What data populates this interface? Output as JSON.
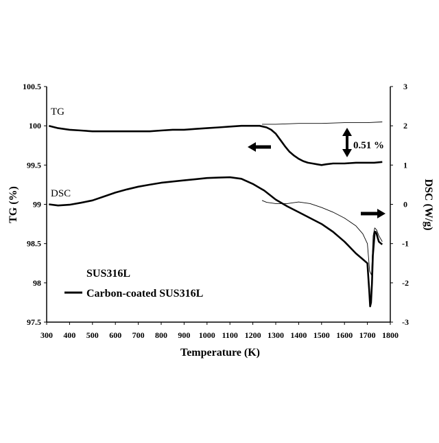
{
  "chart_data": {
    "type": "line",
    "xlabel": "Temperature (K)",
    "ylabel_left": "TG  (%)",
    "ylabel_right": "DSC (W/g)",
    "xlim": [
      300,
      1800
    ],
    "ylim_left": [
      97.5,
      100.5
    ],
    "ylim_right": [
      -3,
      3
    ],
    "x_ticks": [
      300,
      400,
      500,
      600,
      700,
      800,
      900,
      1000,
      1100,
      1200,
      1300,
      1400,
      1500,
      1600,
      1700,
      1800
    ],
    "y_ticks_left": [
      "97.5",
      "98",
      "98.5",
      "99",
      "99.5",
      "100",
      "100.5"
    ],
    "y_ticks_right": [
      "-3",
      "-2",
      "-1",
      "0",
      "1",
      "2",
      "3"
    ],
    "grid": false,
    "annotations": {
      "tg_label": "TG",
      "dsc_label": "DSC",
      "mass_change": "0.51 %"
    },
    "legend": {
      "placement": "bottom-left",
      "entries": [
        "SUS316L",
        "Carbon-coated SUS316L"
      ]
    },
    "series": [
      {
        "name": "SUS316L",
        "axis": "left",
        "style": "thin",
        "x": [
          1240,
          1300,
          1400,
          1500,
          1600,
          1700,
          1765
        ],
        "y": [
          100.02,
          100.02,
          100.03,
          100.03,
          100.04,
          100.04,
          100.05
        ]
      },
      {
        "name": "Carbon-coated SUS316L",
        "axis": "left",
        "style": "thick",
        "x": [
          310,
          350,
          400,
          450,
          500,
          550,
          600,
          650,
          700,
          750,
          800,
          850,
          900,
          950,
          1000,
          1050,
          1100,
          1150,
          1200,
          1230,
          1260,
          1280,
          1300,
          1320,
          1340,
          1360,
          1380,
          1400,
          1420,
          1440,
          1460,
          1480,
          1500,
          1520,
          1550,
          1600,
          1650,
          1700,
          1730,
          1765
        ],
        "y": [
          100.0,
          99.97,
          99.95,
          99.94,
          99.93,
          99.93,
          99.93,
          99.93,
          99.93,
          99.93,
          99.94,
          99.95,
          99.95,
          99.96,
          99.97,
          99.98,
          99.99,
          100.0,
          100.0,
          100.0,
          99.98,
          99.95,
          99.9,
          99.82,
          99.74,
          99.67,
          99.62,
          99.58,
          99.55,
          99.53,
          99.52,
          99.51,
          99.5,
          99.51,
          99.52,
          99.52,
          99.53,
          99.53,
          99.53,
          99.54
        ]
      },
      {
        "name": "SUS316L",
        "axis": "right",
        "style": "thin",
        "x": [
          1240,
          1260,
          1300,
          1350,
          1400,
          1450,
          1500,
          1550,
          1600,
          1650,
          1680,
          1700,
          1710,
          1718,
          1725,
          1732,
          1740,
          1750,
          1760,
          1765
        ],
        "y": [
          0.1,
          0.05,
          0.02,
          0.02,
          0.06,
          0.02,
          -0.08,
          -0.2,
          -0.35,
          -0.55,
          -0.75,
          -1.0,
          -1.7,
          -1.8,
          -0.8,
          -0.6,
          -0.65,
          -0.8,
          -0.9,
          -0.95
        ]
      },
      {
        "name": "Carbon-coated SUS316L",
        "axis": "right",
        "style": "thick",
        "x": [
          310,
          350,
          400,
          450,
          500,
          550,
          600,
          650,
          700,
          750,
          800,
          850,
          900,
          950,
          1000,
          1050,
          1100,
          1150,
          1200,
          1250,
          1300,
          1350,
          1400,
          1450,
          1500,
          1550,
          1600,
          1650,
          1680,
          1700,
          1708,
          1712,
          1716,
          1720,
          1724,
          1728,
          1732,
          1736,
          1740,
          1745,
          1750,
          1760,
          1765
        ],
        "y": [
          0.0,
          -0.03,
          -0.01,
          0.04,
          0.1,
          0.2,
          0.3,
          0.38,
          0.45,
          0.5,
          0.55,
          0.58,
          0.61,
          0.64,
          0.67,
          0.68,
          0.69,
          0.65,
          0.52,
          0.35,
          0.12,
          -0.05,
          -0.2,
          -0.35,
          -0.5,
          -0.7,
          -0.95,
          -1.25,
          -1.4,
          -1.5,
          -2.2,
          -2.6,
          -2.5,
          -2.0,
          -1.3,
          -1.0,
          -0.7,
          -0.7,
          -0.75,
          -0.85,
          -0.95,
          -1.0,
          -1.02
        ]
      }
    ]
  }
}
